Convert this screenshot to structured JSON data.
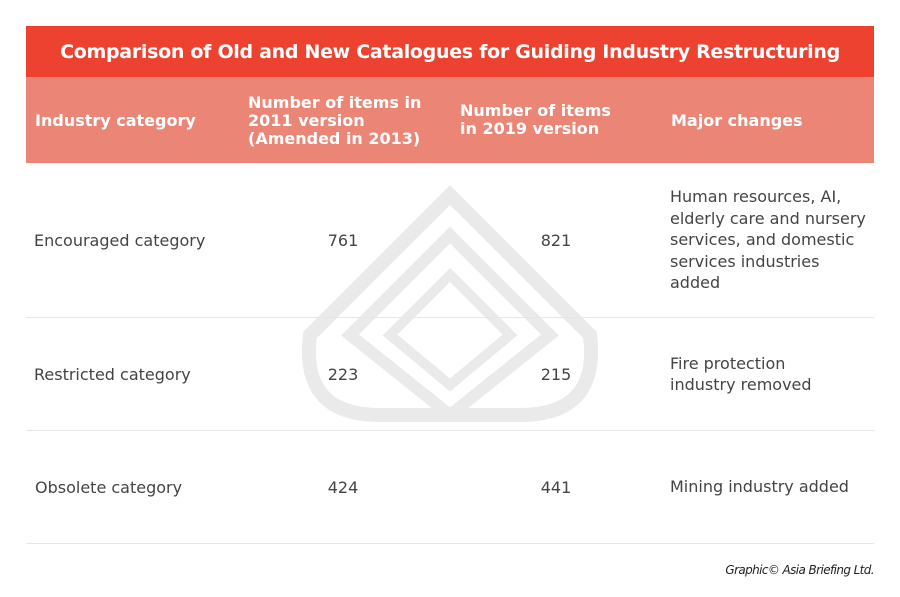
{
  "title": "Comparison of Old and New Catalogues for Guiding Industry Restructuring",
  "colors": {
    "title_bg": "#ee4231",
    "header_bg": "#eb8677",
    "text": "#444444"
  },
  "chart_data": {
    "type": "table",
    "title": "Comparison of Old and New Catalogues for Guiding Industry Restructuring",
    "columns": [
      "Industry category",
      "Number of items in 2011 version (Amended in 2013)",
      "Number of items in 2019 version",
      "Major changes"
    ],
    "rows": [
      {
        "category": "Encouraged category",
        "v2011": "761",
        "v2019": "821",
        "changes": "Human resources, AI, elderly care and nursery services, and domestic services industries added"
      },
      {
        "category": "Restricted category",
        "v2011": "223",
        "v2019": "215",
        "changes": "Fire protection industry removed"
      },
      {
        "category": "Obsolete category",
        "v2011": "424",
        "v2019": "441",
        "changes": "Mining industry added"
      }
    ]
  },
  "credit": "Graphic© Asia Briefing Ltd."
}
